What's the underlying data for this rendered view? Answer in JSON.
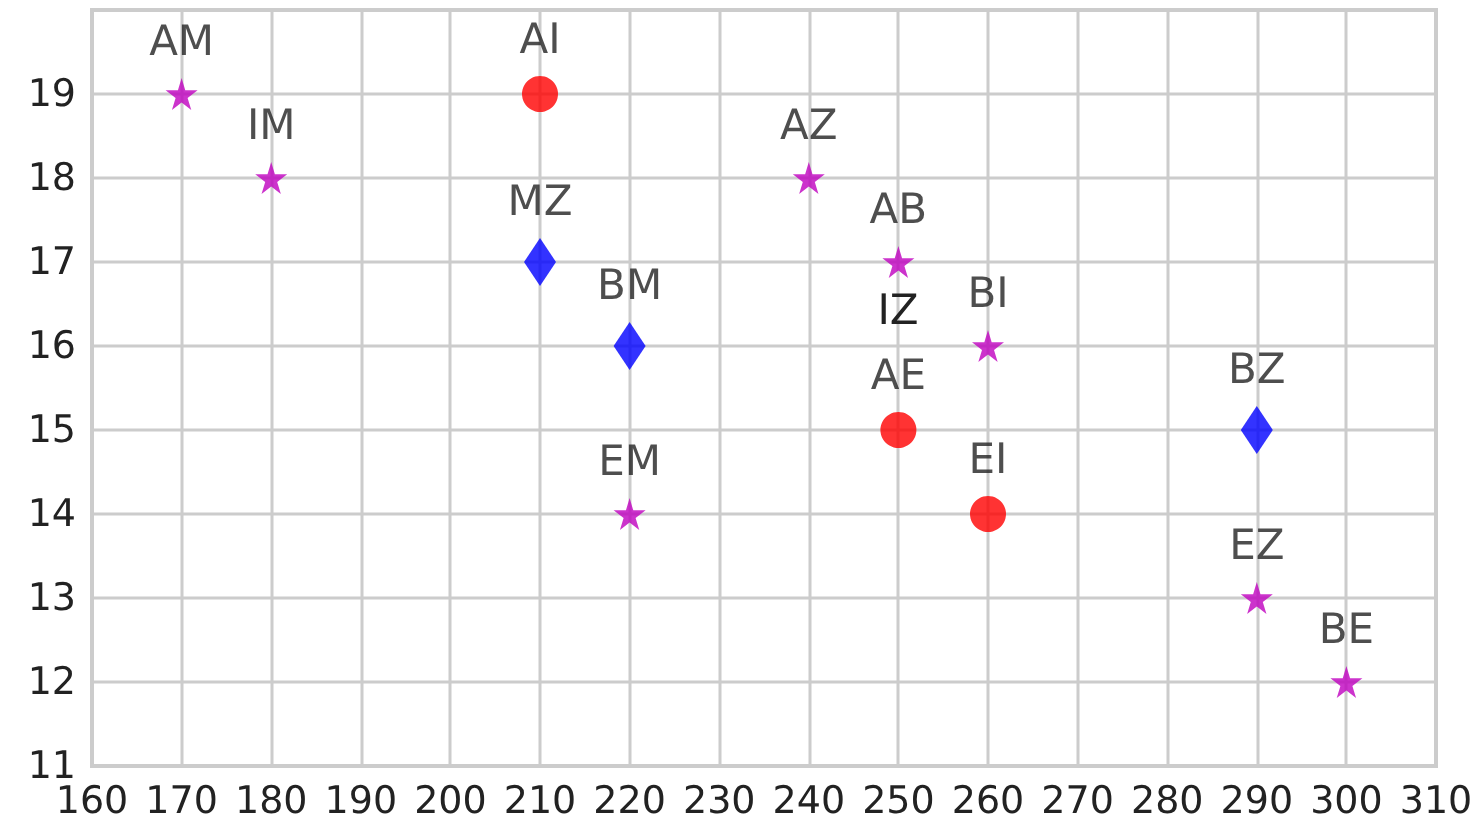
{
  "chart_data": {
    "type": "scatter",
    "grid": true,
    "xlim": [
      160,
      310
    ],
    "xticks": [
      160,
      170,
      180,
      190,
      200,
      210,
      220,
      230,
      240,
      250,
      260,
      270,
      280,
      290,
      300,
      310
    ],
    "ylim": [
      11,
      20
    ],
    "yticks": [
      11,
      12,
      13,
      14,
      15,
      16,
      17,
      18,
      19
    ],
    "series": [
      {
        "color": "#bf00bf",
        "marker": "star",
        "x": [
          170,
          180,
          240,
          250,
          260,
          220,
          290,
          300
        ],
        "values": [
          19,
          18,
          18,
          17,
          16,
          14,
          13,
          12
        ],
        "value_labels": [
          "AM",
          "IM",
          "AZ",
          "AB",
          "BI",
          "EM",
          "EZ",
          "BE"
        ]
      },
      {
        "color": "#ff0000",
        "marker": "circle",
        "x": [
          210,
          250,
          260
        ],
        "values": [
          19,
          15,
          14
        ],
        "value_labels": [
          "AI",
          "AE",
          "EI"
        ]
      },
      {
        "color": "#0000ff",
        "marker": "diamond",
        "x": [
          210,
          220,
          290
        ],
        "values": [
          17,
          16,
          15
        ],
        "value_labels": [
          "MZ",
          "BM",
          "BZ"
        ]
      }
    ],
    "annotations": [
      "IZ"
    ]
  }
}
